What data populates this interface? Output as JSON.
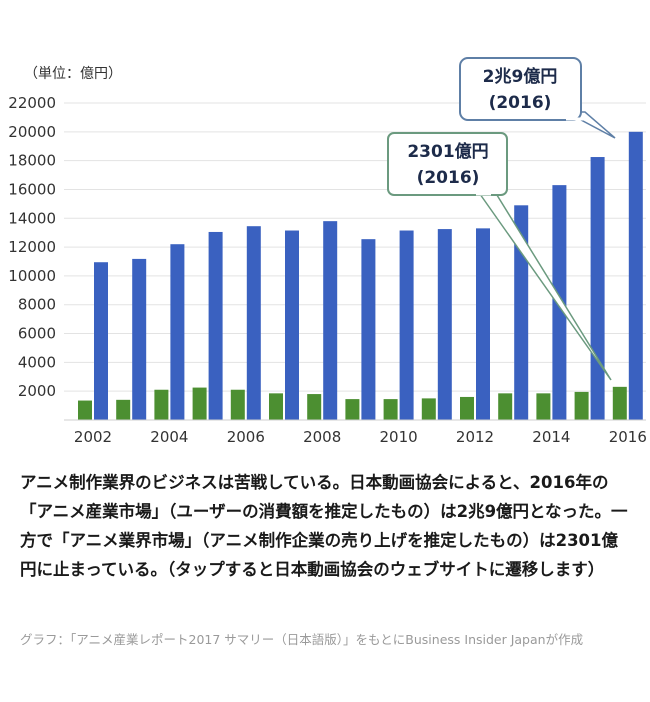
{
  "chart_data": {
    "type": "bar",
    "unit_label": "（単位：億円）",
    "x": [
      2002,
      2003,
      2004,
      2005,
      2006,
      2007,
      2008,
      2009,
      2010,
      2011,
      2012,
      2013,
      2014,
      2015,
      2016
    ],
    "x_tick_labels": [
      "2002",
      "2004",
      "2006",
      "2008",
      "2010",
      "2012",
      "2014",
      "2016"
    ],
    "y_ticks": [
      2000,
      4000,
      6000,
      8000,
      10000,
      12000,
      14000,
      16000,
      18000,
      20000,
      22000
    ],
    "ylim": [
      0,
      22000
    ],
    "grid": true,
    "series": [
      {
        "color": "#3a61c0",
        "values": [
          10950,
          11180,
          12200,
          13050,
          13450,
          13150,
          13800,
          12550,
          13150,
          13250,
          13300,
          14900,
          16300,
          18250,
          20000
        ]
      },
      {
        "color": "#4c8f31",
        "values": [
          1350,
          1400,
          2100,
          2250,
          2100,
          1850,
          1800,
          1450,
          1450,
          1500,
          1600,
          1850,
          1850,
          1950,
          2301
        ]
      }
    ],
    "callouts": [
      {
        "line1": "2兆9億円",
        "line2": "(2016)"
      },
      {
        "line1": "2301億円",
        "line2": "(2016)"
      }
    ]
  },
  "caption": "アニメ制作業界のビジネスは苦戦している。日本動画協会によると、2016年の「アニメ産業市場」（ユーザーの消費額を推定したもの）は2兆9億円となった。一方で「アニメ業界市場」（アニメ制作企業の売り上げを推定したもの）は2301億円に止まっている。（タップすると日本動画協会のウェブサイトに遷移します）",
  "credit": "グラフ：「アニメ産業レポート2017 サマリー（日本語版）」をもとにBusiness Insider Japanが作成"
}
